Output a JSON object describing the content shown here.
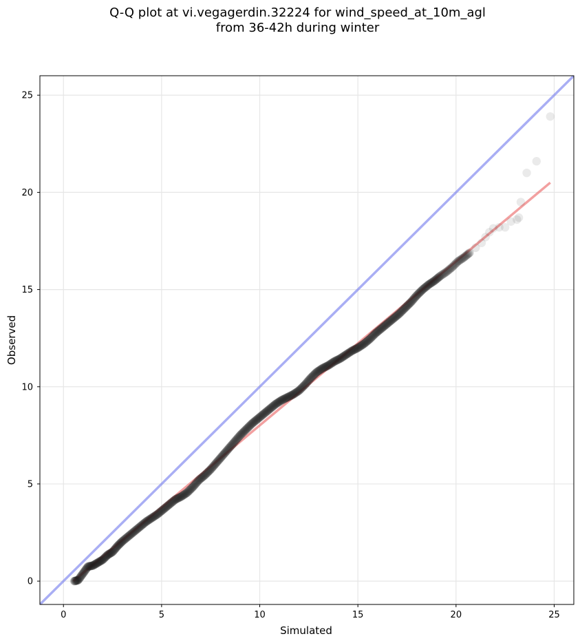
{
  "chart_data": {
    "type": "scatter",
    "title": "Q-Q plot at vi.vegagerdin.32224 for wind_speed_at_10m_agl",
    "subtitle": "from 36-42h during winter",
    "xlabel": "Simulated",
    "ylabel": "Observed",
    "xlim": [
      -1.2,
      26
    ],
    "ylim": [
      -1.2,
      26
    ],
    "xticks": [
      0,
      5,
      10,
      15,
      20,
      25
    ],
    "yticks": [
      0,
      5,
      10,
      15,
      20,
      25
    ],
    "grid": true,
    "reference_line": {
      "x": [
        -1.2,
        26
      ],
      "y": [
        -1.2,
        26
      ],
      "color": "#7b83ee"
    },
    "fit_line": {
      "x": [
        0.5,
        24.8
      ],
      "y": [
        0.0,
        20.5
      ],
      "color": "#ee8080"
    },
    "quantiles": [
      [
        0.55,
        0.0
      ],
      [
        0.75,
        0.05
      ],
      [
        1.0,
        0.4
      ],
      [
        1.25,
        0.75
      ],
      [
        1.5,
        0.8
      ],
      [
        1.75,
        0.95
      ],
      [
        2.0,
        1.1
      ],
      [
        2.25,
        1.35
      ],
      [
        2.5,
        1.5
      ],
      [
        2.75,
        1.8
      ],
      [
        3.0,
        2.05
      ],
      [
        3.3,
        2.3
      ],
      [
        3.6,
        2.55
      ],
      [
        3.9,
        2.8
      ],
      [
        4.2,
        3.05
      ],
      [
        4.5,
        3.25
      ],
      [
        4.8,
        3.45
      ],
      [
        5.1,
        3.7
      ],
      [
        5.4,
        3.95
      ],
      [
        5.7,
        4.2
      ],
      [
        6.0,
        4.35
      ],
      [
        6.3,
        4.55
      ],
      [
        6.6,
        4.85
      ],
      [
        6.9,
        5.2
      ],
      [
        7.2,
        5.45
      ],
      [
        7.5,
        5.75
      ],
      [
        7.8,
        6.1
      ],
      [
        8.1,
        6.45
      ],
      [
        8.4,
        6.8
      ],
      [
        8.7,
        7.15
      ],
      [
        9.0,
        7.5
      ],
      [
        9.3,
        7.8
      ],
      [
        9.6,
        8.1
      ],
      [
        9.9,
        8.35
      ],
      [
        10.2,
        8.6
      ],
      [
        10.5,
        8.85
      ],
      [
        10.8,
        9.1
      ],
      [
        11.1,
        9.3
      ],
      [
        11.4,
        9.45
      ],
      [
        11.7,
        9.6
      ],
      [
        12.0,
        9.8
      ],
      [
        12.3,
        10.1
      ],
      [
        12.6,
        10.45
      ],
      [
        12.9,
        10.75
      ],
      [
        13.2,
        10.95
      ],
      [
        13.5,
        11.1
      ],
      [
        13.8,
        11.3
      ],
      [
        14.1,
        11.45
      ],
      [
        14.4,
        11.65
      ],
      [
        14.7,
        11.85
      ],
      [
        15.0,
        12.0
      ],
      [
        15.3,
        12.2
      ],
      [
        15.6,
        12.45
      ],
      [
        15.9,
        12.75
      ],
      [
        16.2,
        13.0
      ],
      [
        16.5,
        13.25
      ],
      [
        16.8,
        13.5
      ],
      [
        17.1,
        13.75
      ],
      [
        17.4,
        14.05
      ],
      [
        17.7,
        14.35
      ],
      [
        18.0,
        14.7
      ],
      [
        18.3,
        15.0
      ],
      [
        18.6,
        15.25
      ],
      [
        18.9,
        15.45
      ],
      [
        19.2,
        15.7
      ],
      [
        19.5,
        15.9
      ],
      [
        19.8,
        16.15
      ],
      [
        20.1,
        16.45
      ],
      [
        20.4,
        16.65
      ],
      [
        20.7,
        16.9
      ],
      [
        21.0,
        17.15
      ],
      [
        21.3,
        17.4
      ],
      [
        21.5,
        17.7
      ],
      [
        21.7,
        17.95
      ],
      [
        21.9,
        18.15
      ],
      [
        22.2,
        18.2
      ],
      [
        22.5,
        18.2
      ],
      [
        22.8,
        18.5
      ],
      [
        23.1,
        18.6
      ],
      [
        23.2,
        18.7
      ],
      [
        23.3,
        19.5
      ],
      [
        23.6,
        21.0
      ],
      [
        24.1,
        21.6
      ],
      [
        24.8,
        23.9
      ]
    ]
  },
  "colors": {
    "points": "#1a1a1a",
    "grid": "#e6e6e6",
    "axes": "#000000"
  }
}
